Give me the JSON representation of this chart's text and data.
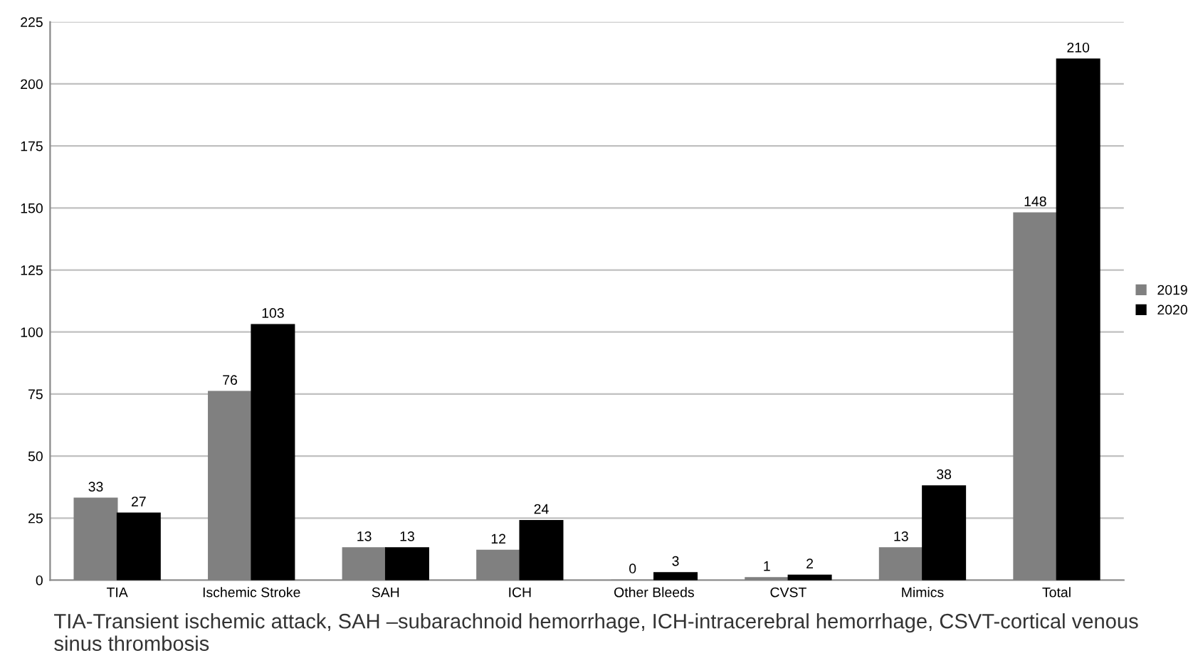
{
  "chart_data": {
    "type": "bar",
    "categories": [
      "TIA",
      "Ischemic Stroke",
      "SAH",
      "ICH",
      "Other Bleeds",
      "CVST",
      "Mimics",
      "Total"
    ],
    "series": [
      {
        "name": "2019",
        "color": "#808080",
        "values": [
          33,
          76,
          13,
          12,
          0,
          1,
          13,
          148
        ]
      },
      {
        "name": "2020",
        "color": "#000000",
        "values": [
          27,
          103,
          13,
          24,
          3,
          2,
          38,
          210
        ]
      }
    ],
    "ylim": [
      0,
      225
    ],
    "yticks": [
      0,
      25,
      50,
      75,
      100,
      125,
      150,
      175,
      200,
      225
    ],
    "grid": "y",
    "legend": "right",
    "data_labels": true,
    "annotations": [
      "TIA-Transient ischemic attack, SAH –subarachnoid hemorrhage, ICH-intracerebral hemorrhage, CSVT-cortical venous sinus thrombosis"
    ]
  }
}
